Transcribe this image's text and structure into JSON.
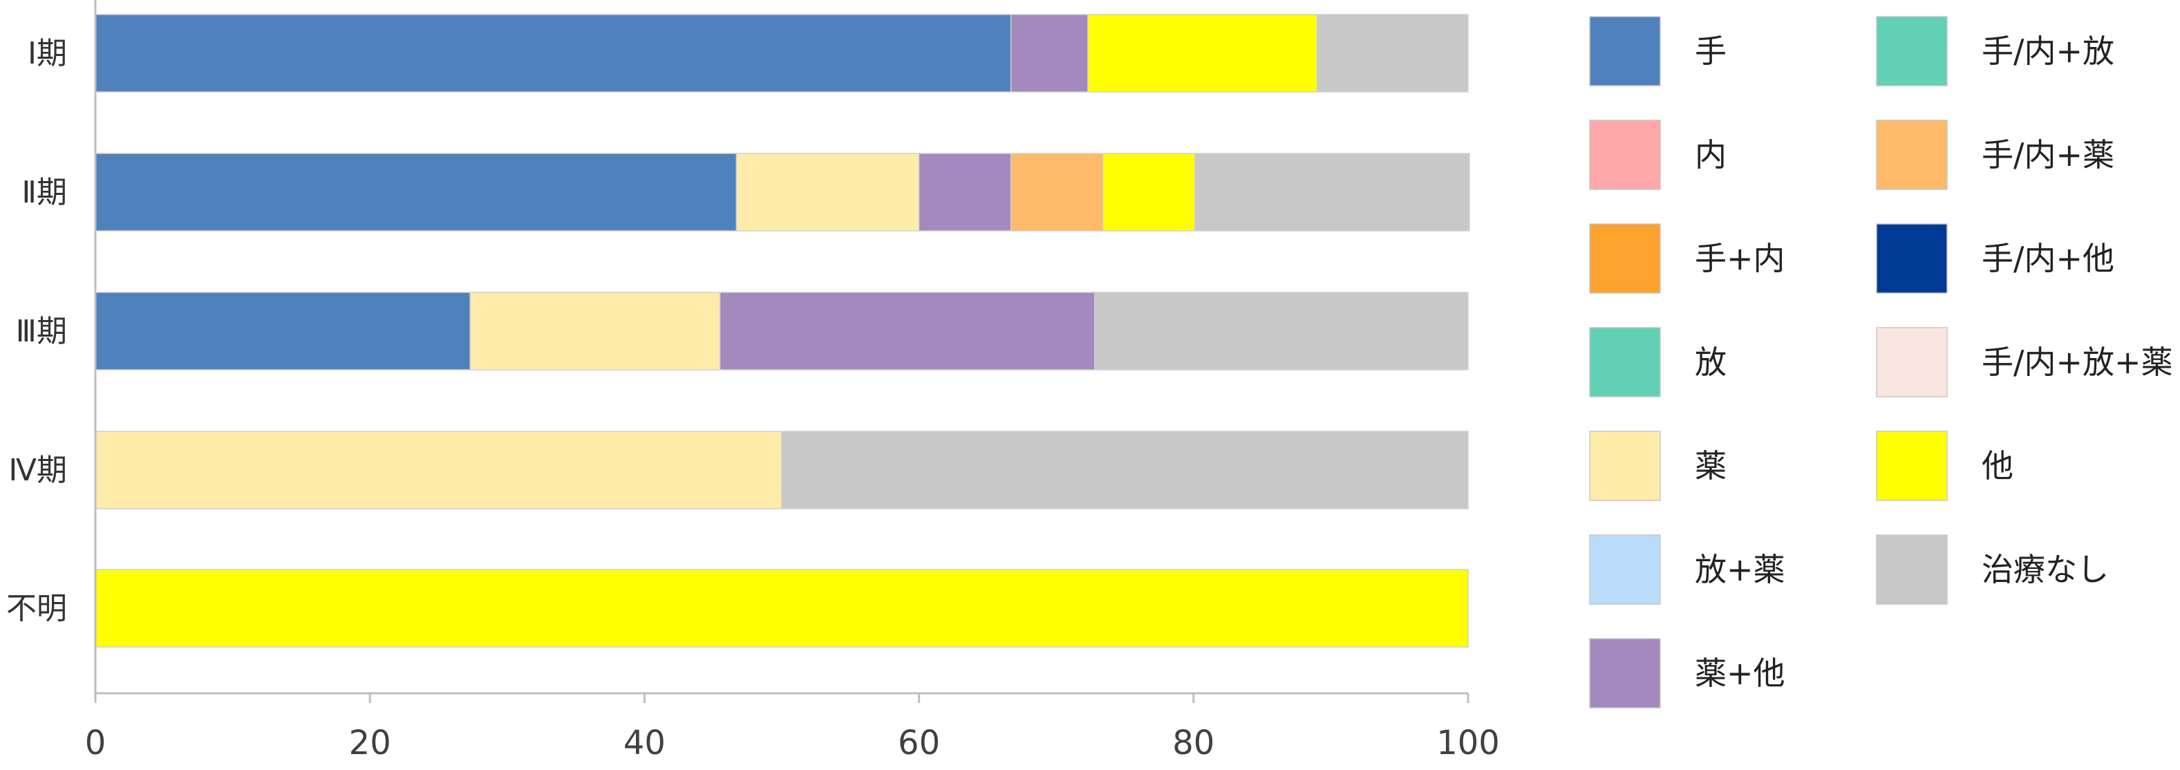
{
  "chart_data": {
    "type": "bar",
    "orientation": "horizontal",
    "stacked": true,
    "categories": [
      "Ⅰ期",
      "Ⅱ期",
      "Ⅲ期",
      "Ⅳ期",
      "不明"
    ],
    "xlim": [
      0,
      100
    ],
    "xticks": [
      0,
      20,
      40,
      60,
      80,
      100
    ],
    "legend_position": "right",
    "grid": false,
    "series": [
      {
        "name": "手",
        "color": "#4F81BD",
        "values": [
          66.7,
          46.7,
          27.3,
          0,
          0
        ]
      },
      {
        "name": "内",
        "color": "#FFA7A9",
        "values": [
          0,
          0,
          0,
          0,
          0
        ]
      },
      {
        "name": "手+内",
        "color": "#FBA32E",
        "values": [
          0,
          0,
          0,
          0,
          0
        ]
      },
      {
        "name": "放",
        "color": "#62D0B4",
        "values": [
          0,
          0,
          0,
          0,
          0
        ]
      },
      {
        "name": "薬",
        "color": "#FFEBAA",
        "values": [
          0,
          13.3,
          18.2,
          50,
          0
        ]
      },
      {
        "name": "放+薬",
        "color": "#B9DCFB",
        "values": [
          0,
          0,
          0,
          0,
          0
        ]
      },
      {
        "name": "薬+他",
        "color": "#A389BD",
        "values": [
          5.6,
          6.7,
          27.3,
          0,
          0
        ]
      },
      {
        "name": "手/内+放",
        "color": "#62D0B4",
        "values": [
          0,
          0,
          0,
          0,
          0
        ]
      },
      {
        "name": "手/内+薬",
        "color": "#FFBA6A",
        "values": [
          0,
          6.7,
          0,
          0,
          0
        ]
      },
      {
        "name": "手/内+他",
        "color": "#003A95",
        "values": [
          0,
          0,
          0,
          0,
          0
        ]
      },
      {
        "name": "手/内+放+薬",
        "color": "#FAE6E1",
        "values": [
          0,
          0,
          0,
          0,
          0
        ]
      },
      {
        "name": "他",
        "color": "#FFFF00",
        "values": [
          16.7,
          6.7,
          0,
          0,
          100
        ]
      },
      {
        "name": "治療なし",
        "color": "#C8C8C8",
        "values": [
          11.0,
          20.0,
          27.2,
          50,
          0
        ]
      }
    ],
    "legend": [
      [
        "手",
        "内",
        "手+内",
        "放",
        "薬",
        "放+薬",
        "薬+他"
      ],
      [
        "手/内+放",
        "手/内+薬",
        "手/内+他",
        "手/内+放+薬",
        "他",
        "治療なし"
      ]
    ]
  }
}
